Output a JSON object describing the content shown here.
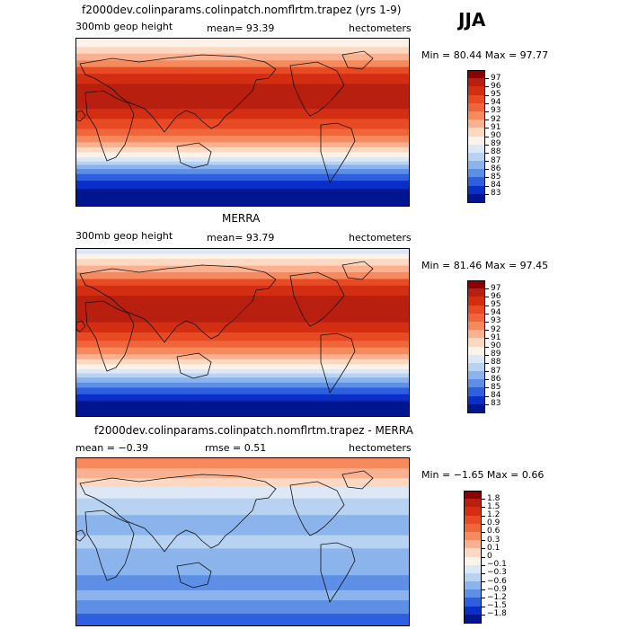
{
  "season": "JJA",
  "panels": [
    {
      "title": "f2000dev.colinparams.colinpatch.nomflrtm.trapez (yrs 1-9)",
      "field_label": "300mb geop height",
      "stat1": "mean=  93.39",
      "stat2": "",
      "units": "hectometers",
      "minmax": "Min =  80.44 Max =  97.77",
      "levels": [
        "97",
        "96",
        "95",
        "94",
        "93",
        "92",
        "91",
        "90",
        "89",
        "88",
        "87",
        "86",
        "85",
        "84",
        "83"
      ],
      "colors": [
        "#8b0000",
        "#b81f0f",
        "#d42e12",
        "#e84a24",
        "#f0653a",
        "#f68a5c",
        "#fbb08f",
        "#fdd8c1",
        "#fbf3ea",
        "#dce8f6",
        "#b8d2f2",
        "#8cb4ec",
        "#5d8fe6",
        "#2d5fe0",
        "#0a2fc8",
        "#00158f"
      ],
      "zones": [
        [
          "#fbf3ea",
          0.0
        ],
        [
          "#fdd8c1",
          0.05
        ],
        [
          "#fbb08f",
          0.09
        ],
        [
          "#f68a5c",
          0.13
        ],
        [
          "#e84a24",
          0.17
        ],
        [
          "#d42e12",
          0.21
        ],
        [
          "#b81f0f",
          0.27
        ],
        [
          "#d42e12",
          0.42
        ],
        [
          "#e84a24",
          0.48
        ],
        [
          "#f0653a",
          0.54
        ],
        [
          "#f68a5c",
          0.58
        ],
        [
          "#fbb08f",
          0.62
        ],
        [
          "#fdd8c1",
          0.65
        ],
        [
          "#fbf3ea",
          0.68
        ],
        [
          "#dce8f6",
          0.71
        ],
        [
          "#b8d2f2",
          0.735
        ],
        [
          "#8cb4ec",
          0.755
        ],
        [
          "#5d8fe6",
          0.78
        ],
        [
          "#2d5fe0",
          0.81
        ],
        [
          "#0a2fc8",
          0.85
        ],
        [
          "#00158f",
          0.9
        ],
        [
          "#00158f",
          1.0
        ]
      ]
    },
    {
      "title": "MERRA",
      "field_label": "300mb geop height",
      "stat1": "mean=  93.79",
      "stat2": "",
      "units": "hectometers",
      "minmax": "Min =  81.46 Max =  97.45",
      "levels": [
        "97",
        "96",
        "95",
        "94",
        "93",
        "92",
        "91",
        "90",
        "89",
        "88",
        "87",
        "86",
        "85",
        "84",
        "83"
      ],
      "colors": [
        "#8b0000",
        "#b81f0f",
        "#d42e12",
        "#e84a24",
        "#f0653a",
        "#f68a5c",
        "#fbb08f",
        "#fdd8c1",
        "#fbf3ea",
        "#dce8f6",
        "#b8d2f2",
        "#8cb4ec",
        "#5d8fe6",
        "#2d5fe0",
        "#0a2fc8",
        "#00158f"
      ],
      "zones": [
        [
          "#dce8f6",
          0.0
        ],
        [
          "#fbf3ea",
          0.03
        ],
        [
          "#fdd8c1",
          0.06
        ],
        [
          "#fbb08f",
          0.1
        ],
        [
          "#f68a5c",
          0.14
        ],
        [
          "#e84a24",
          0.18
        ],
        [
          "#d42e12",
          0.22
        ],
        [
          "#b81f0f",
          0.28
        ],
        [
          "#d42e12",
          0.44
        ],
        [
          "#e84a24",
          0.5
        ],
        [
          "#f0653a",
          0.55
        ],
        [
          "#f68a5c",
          0.59
        ],
        [
          "#fbb08f",
          0.63
        ],
        [
          "#fdd8c1",
          0.66
        ],
        [
          "#fbf3ea",
          0.69
        ],
        [
          "#dce8f6",
          0.72
        ],
        [
          "#b8d2f2",
          0.745
        ],
        [
          "#8cb4ec",
          0.77
        ],
        [
          "#5d8fe6",
          0.8
        ],
        [
          "#2d5fe0",
          0.83
        ],
        [
          "#0a2fc8",
          0.87
        ],
        [
          "#00158f",
          0.91
        ],
        [
          "#00158f",
          1.0
        ]
      ]
    },
    {
      "title": "f2000dev.colinparams.colinpatch.nomflrtm.trapez - MERRA",
      "field_label": "",
      "stat1": "mean =  −0.39",
      "stat2": "rmse =   0.51",
      "units": "hectometers",
      "minmax": "Min = −1.65 Max =   0.66",
      "levels": [
        "1.8",
        "1.5",
        "1.2",
        "0.9",
        "0.6",
        "0.3",
        "0.1",
        "0",
        "−0.1",
        "−0.3",
        "−0.6",
        "−0.9",
        "−1.2",
        "−1.5",
        "−1.8"
      ],
      "colors": [
        "#8b0000",
        "#b81f0f",
        "#d42e12",
        "#e84a24",
        "#f0653a",
        "#f68a5c",
        "#fbb08f",
        "#fdd8c1",
        "#fbf3ea",
        "#dce8f6",
        "#b8d2f2",
        "#8cb4ec",
        "#5d8fe6",
        "#2d5fe0",
        "#0a2fc8",
        "#00158f"
      ],
      "zones": [
        [
          "#f68a5c",
          0.0
        ],
        [
          "#fbb08f",
          0.06
        ],
        [
          "#fdd8c1",
          0.12
        ],
        [
          "#dce8f6",
          0.17
        ],
        [
          "#b8d2f2",
          0.24
        ],
        [
          "#8cb4ec",
          0.34
        ],
        [
          "#b8d2f2",
          0.46
        ],
        [
          "#8cb4ec",
          0.54
        ],
        [
          "#5d8fe6",
          0.7
        ],
        [
          "#8cb4ec",
          0.79
        ],
        [
          "#5d8fe6",
          0.85
        ],
        [
          "#2d5fe0",
          0.93
        ],
        [
          "#2d5fe0",
          1.0
        ]
      ]
    }
  ]
}
